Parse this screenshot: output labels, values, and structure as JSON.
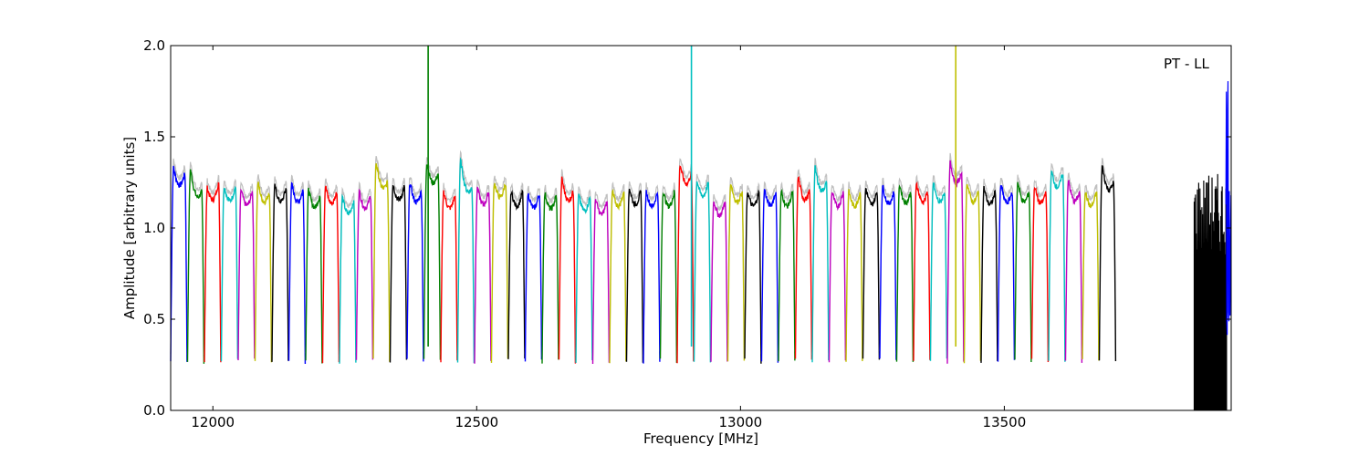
{
  "chart_data": {
    "type": "line",
    "title": "",
    "xlabel": "Frequency [MHz]",
    "ylabel": "Amplitude [arbitrary units]",
    "annotation": "PT - LL",
    "xlim": [
      11920,
      13930
    ],
    "ylim": [
      0.0,
      2.0
    ],
    "xticks": [
      12000,
      12500,
      13000,
      13500
    ],
    "yticks": [
      0.0,
      0.5,
      1.0,
      1.5,
      2.0
    ],
    "xtick_labels": [
      "12000",
      "12500",
      "13000",
      "13500"
    ],
    "ytick_labels": [
      "0.0",
      "0.5",
      "1.0",
      "1.5",
      "2.0"
    ],
    "grid": false,
    "legend": "none",
    "shadow_color": "#bfbfbf",
    "color_cycle": [
      "#0000ff",
      "#008000",
      "#ff0000",
      "#00bfbf",
      "#bf00bf",
      "#bfbf00",
      "#000000"
    ],
    "band": {
      "count": 56,
      "start_mhz": 11920,
      "width_mhz": 32,
      "floor": 0.27,
      "peak_left": [
        1.33,
        1.32,
        1.22,
        1.23,
        1.21,
        1.25,
        1.23,
        1.24,
        1.21,
        1.23,
        1.17,
        1.2,
        1.36,
        1.24,
        1.25,
        1.36,
        1.2,
        1.37,
        1.22,
        1.25,
        1.2,
        1.19,
        1.19,
        1.27,
        1.18,
        1.16,
        1.2,
        1.22,
        1.2,
        1.2,
        1.35,
        1.26,
        1.15,
        1.25,
        1.2,
        1.21,
        1.2,
        1.28,
        1.33,
        1.2,
        1.2,
        1.22,
        1.23,
        1.24,
        1.25,
        1.25,
        1.36,
        1.25,
        1.22,
        1.24,
        1.25,
        1.23,
        1.31,
        1.26,
        1.2,
        1.34
      ],
      "peak_right": [
        1.3,
        1.2,
        1.25,
        1.23,
        1.2,
        1.2,
        1.22,
        1.21,
        1.18,
        1.2,
        1.15,
        1.18,
        1.25,
        1.23,
        1.2,
        1.3,
        1.18,
        1.22,
        1.2,
        1.25,
        1.2,
        1.19,
        1.18,
        1.2,
        1.17,
        1.15,
        1.2,
        1.2,
        1.2,
        1.2,
        1.3,
        1.25,
        1.15,
        1.2,
        1.2,
        1.2,
        1.2,
        1.2,
        1.25,
        1.2,
        1.2,
        1.2,
        1.2,
        1.2,
        1.2,
        1.2,
        1.3,
        1.2,
        1.2,
        1.2,
        1.2,
        1.2,
        1.3,
        1.2,
        1.2,
        1.25
      ]
    },
    "spikes": [
      {
        "x": 12408,
        "y": 2.0,
        "color": "#008000"
      },
      {
        "x": 12907,
        "y": 2.0,
        "color": "#00bfbf"
      },
      {
        "x": 13408,
        "y": 2.0,
        "color": "#bfbf00"
      }
    ],
    "noise_region": {
      "x_start": 13860,
      "x_end": 13930
    }
  }
}
